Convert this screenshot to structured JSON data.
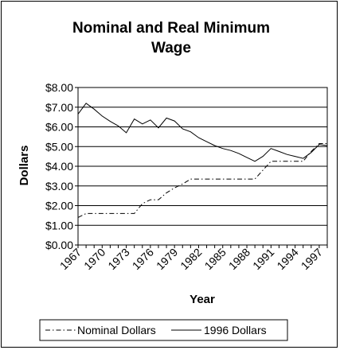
{
  "chart_data": {
    "type": "line",
    "title_lines": [
      "Nominal and Real Minimum",
      "Wage"
    ],
    "xlabel": "Year",
    "ylabel": "Dollars",
    "ylim": [
      0,
      8
    ],
    "xlim": [
      1967,
      1998
    ],
    "y_ticks": [
      "$0.00",
      "$1.00",
      "$2.00",
      "$3.00",
      "$4.00",
      "$5.00",
      "$6.00",
      "$7.00",
      "$8.00"
    ],
    "x_ticks": [
      "1967",
      "1970",
      "1973",
      "1976",
      "1979",
      "1982",
      "1985",
      "1988",
      "1991",
      "1994",
      "1997"
    ],
    "grid": "horizontal",
    "legend_position": "bottom",
    "x": [
      1967,
      1968,
      1969,
      1970,
      1971,
      1972,
      1973,
      1974,
      1975,
      1976,
      1977,
      1978,
      1979,
      1980,
      1981,
      1982,
      1983,
      1984,
      1985,
      1986,
      1987,
      1988,
      1989,
      1990,
      1991,
      1992,
      1993,
      1994,
      1995,
      1996,
      1997,
      1998
    ],
    "series": [
      {
        "name": "Nominal Dollars",
        "style": "dash-dot",
        "values": [
          1.4,
          1.6,
          1.6,
          1.6,
          1.6,
          1.6,
          1.6,
          1.6,
          2.1,
          2.3,
          2.3,
          2.65,
          2.9,
          3.1,
          3.35,
          3.35,
          3.35,
          3.35,
          3.35,
          3.35,
          3.35,
          3.35,
          3.35,
          3.8,
          4.25,
          4.25,
          4.25,
          4.25,
          4.25,
          4.75,
          5.15,
          5.15
        ]
      },
      {
        "name": "1996 Dollars",
        "style": "solid",
        "values": [
          6.65,
          7.2,
          6.9,
          6.55,
          6.28,
          6.05,
          5.7,
          6.4,
          6.15,
          6.35,
          5.95,
          6.45,
          6.3,
          5.9,
          5.75,
          5.45,
          5.25,
          5.05,
          4.9,
          4.8,
          4.65,
          4.45,
          4.25,
          4.5,
          4.9,
          4.75,
          4.6,
          4.5,
          4.4,
          4.7,
          5.1,
          5.05
        ]
      }
    ]
  }
}
